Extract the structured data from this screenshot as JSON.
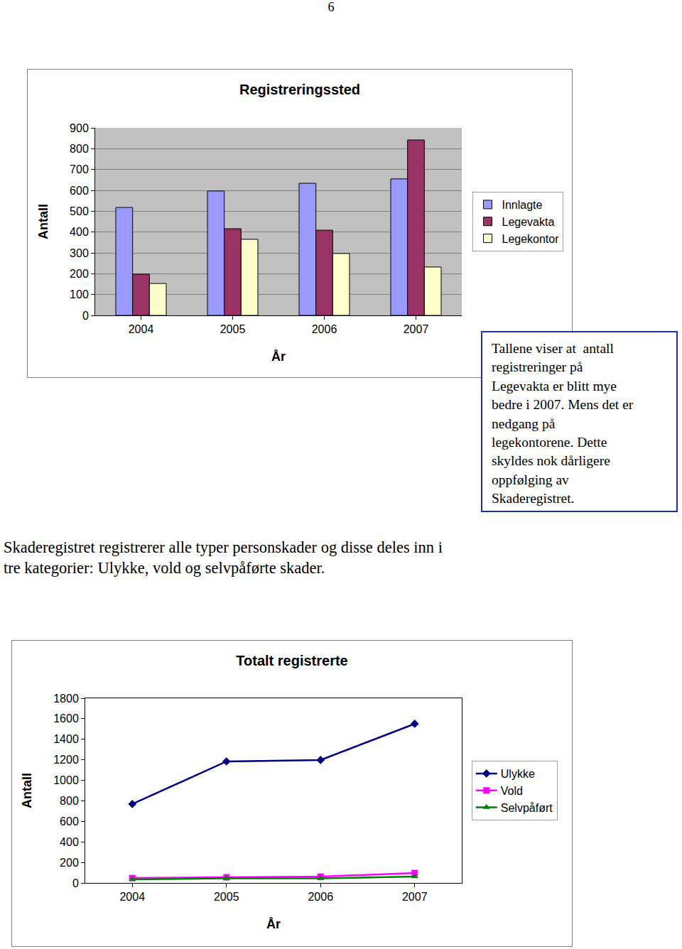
{
  "page_number": "6",
  "chart_data": [
    {
      "type": "bar",
      "title": "Registreringssted",
      "x_label": "År",
      "y_label": "Antall",
      "categories": [
        "2004",
        "2005",
        "2006",
        "2007"
      ],
      "series": [
        {
          "name": "Innlagte",
          "color": "#9999FF",
          "values": [
            518,
            597,
            634,
            655
          ]
        },
        {
          "name": "Legevakta",
          "color": "#993366",
          "values": [
            198,
            416,
            409,
            842
          ]
        },
        {
          "name": "Legekontor",
          "color": "#FFFFCC",
          "values": [
            153,
            365,
            297,
            232
          ]
        }
      ],
      "ylim": [
        0,
        900
      ],
      "yticks": [
        0,
        100,
        200,
        300,
        400,
        500,
        600,
        700,
        800,
        900
      ],
      "grid": true,
      "legend": "right"
    },
    {
      "type": "line",
      "title": "Totalt registrerte",
      "x_label": "År",
      "y_label": "Antall",
      "categories": [
        "2004",
        "2005",
        "2006",
        "2007"
      ],
      "series": [
        {
          "name": "Ulykke",
          "color": "#000080",
          "marker": "diamond",
          "values": [
            769,
            1184,
            1198,
            1551
          ]
        },
        {
          "name": "Vold",
          "color": "#FF00FF",
          "marker": "square",
          "values": [
            48,
            55,
            62,
            97
          ]
        },
        {
          "name": "Selvpåført",
          "color": "#008000",
          "marker": "triangle-up",
          "values": [
            35,
            45,
            45,
            62
          ]
        }
      ],
      "ylim": [
        0,
        1800
      ],
      "yticks": [
        0,
        200,
        400,
        600,
        800,
        1000,
        1200,
        1400,
        1600,
        1800
      ],
      "grid": false,
      "legend": "right"
    }
  ],
  "text_box": [
    "Tallene viser at  antall",
    "registreringer på",
    "Legevakta er blitt mye",
    "bedre i 2007. Mens det er",
    "nedgang på",
    "legekontorene. Dette",
    "skyldes nok dårligere",
    "oppfølging av",
    "Skaderegistret."
  ],
  "paragraph": [
    "Skaderegistret registrerer alle typer personskader og disse deles inn i",
    "tre kategorier: Ulykke, vold og selvpåførte skader."
  ]
}
